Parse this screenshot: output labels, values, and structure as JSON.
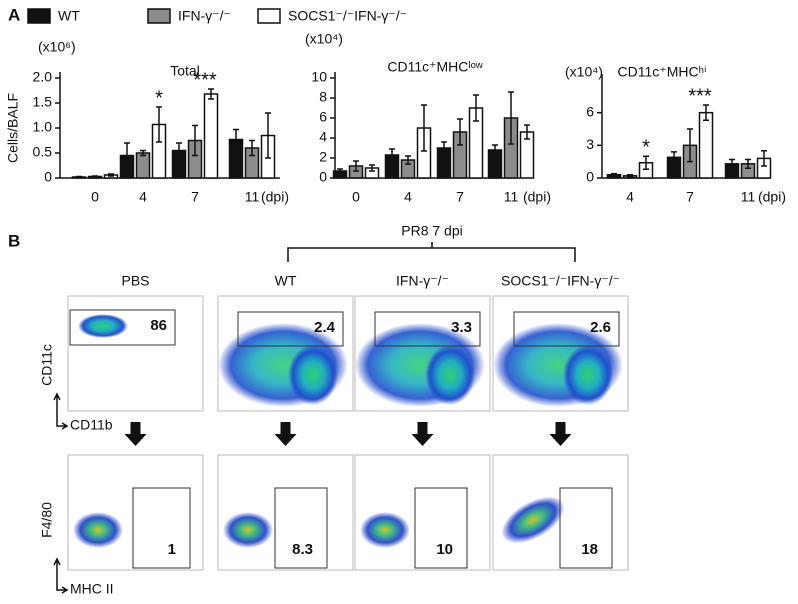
{
  "panel_labels": [
    "A",
    "B"
  ],
  "legend": {
    "names": [
      "WT",
      "IFN-γ⁻/⁻",
      "SOCS1⁻/⁻IFN-γ⁻/⁻"
    ]
  },
  "chart_data": [
    {
      "type": "bar",
      "title": "Total",
      "unit": "(x10⁶)",
      "y_label": "Cells/BALF",
      "x_unit": "(dpi)",
      "categories": [
        "0",
        "4",
        "7",
        "11"
      ],
      "series": [
        {
          "name": "WT",
          "color": "#111111",
          "values": [
            0.02,
            0.45,
            0.55,
            0.77
          ],
          "errors": [
            0.01,
            0.25,
            0.15,
            0.2
          ]
        },
        {
          "name": "IFN-γ⁻/⁻",
          "color": "#8c8c8c",
          "values": [
            0.03,
            0.5,
            0.75,
            0.6
          ],
          "errors": [
            0.01,
            0.05,
            0.3,
            0.15
          ]
        },
        {
          "name": "SOCS1⁻/⁻IFN-γ⁻/⁻",
          "color": "#ffffff",
          "values": [
            0.06,
            1.07,
            1.68,
            0.85
          ],
          "errors": [
            0.02,
            0.35,
            0.1,
            0.45
          ]
        }
      ],
      "ylim": [
        0,
        2
      ],
      "yticks": [
        0,
        {
          "value": 0.5,
          "label": "0.5"
        },
        {
          "value": 1,
          "label": "1.0"
        },
        {
          "value": 1.5,
          "label": "1.5"
        },
        {
          "value": 2,
          "label": "2.0"
        }
      ],
      "annotations": [
        {
          "text": "*",
          "category": "4"
        },
        {
          "text": "***",
          "category": "7"
        }
      ]
    },
    {
      "type": "bar",
      "title": "CD11c⁺MHCˡᵒʷ",
      "unit": "(x10⁴)",
      "x_unit": "(dpi)",
      "categories": [
        "0",
        "4",
        "7",
        "11"
      ],
      "series": [
        {
          "name": "WT",
          "color": "#111111",
          "values": [
            0.7,
            2.3,
            3.0,
            2.8
          ],
          "errors": [
            0.2,
            0.6,
            0.6,
            0.5
          ]
        },
        {
          "name": "IFN-γ⁻/⁻",
          "color": "#8c8c8c",
          "values": [
            1.2,
            1.8,
            4.6,
            6.0
          ],
          "errors": [
            0.5,
            0.4,
            1.3,
            2.6
          ]
        },
        {
          "name": "SOCS1⁻/⁻IFN-γ⁻/⁻",
          "color": "#ffffff",
          "values": [
            1.0,
            5.0,
            7.0,
            4.6
          ],
          "errors": [
            0.3,
            2.3,
            1.3,
            0.7
          ]
        }
      ],
      "ylim": [
        0,
        10
      ],
      "yticks": [
        0,
        2,
        4,
        6,
        8,
        10
      ],
      "annotations": []
    },
    {
      "type": "bar",
      "title": "CD11c⁺MHCʰⁱ",
      "unit": "(x10⁴)",
      "x_unit": "(dpi)",
      "categories": [
        "4",
        "7",
        "11"
      ],
      "series": [
        {
          "name": "WT",
          "color": "#111111",
          "values": [
            0.3,
            1.9,
            1.3
          ],
          "errors": [
            0.1,
            0.5,
            0.4
          ]
        },
        {
          "name": "IFN-γ⁻/⁻",
          "color": "#8c8c8c",
          "values": [
            0.2,
            3.0,
            1.3
          ],
          "errors": [
            0.1,
            1.5,
            0.4
          ]
        },
        {
          "name": "SOCS1⁻/⁻IFN-γ⁻/⁻",
          "color": "#ffffff",
          "values": [
            1.4,
            6.0,
            1.8
          ],
          "errors": [
            0.6,
            0.7,
            0.7
          ]
        }
      ],
      "ylim": [
        0,
        9
      ],
      "yticks": [
        0,
        3,
        6
      ],
      "annotations": [
        {
          "text": "*",
          "category": "4"
        },
        {
          "text": "***",
          "category": "7"
        }
      ]
    }
  ],
  "panel_b": {
    "header": "PR8  7 dpi",
    "columns": [
      "PBS",
      "WT",
      "IFN-γ⁻/⁻",
      "SOCS1⁻/⁻IFN-γ⁻/⁻"
    ],
    "top_gates": [
      "86",
      "2.4",
      "3.3",
      "2.6"
    ],
    "bottom_gates": [
      "1",
      "8.3",
      "10",
      "18"
    ],
    "axes": {
      "top_y": "CD11c",
      "top_x": "CD11b",
      "bottom_y": "F4/80",
      "bottom_x": "MHC II"
    }
  }
}
